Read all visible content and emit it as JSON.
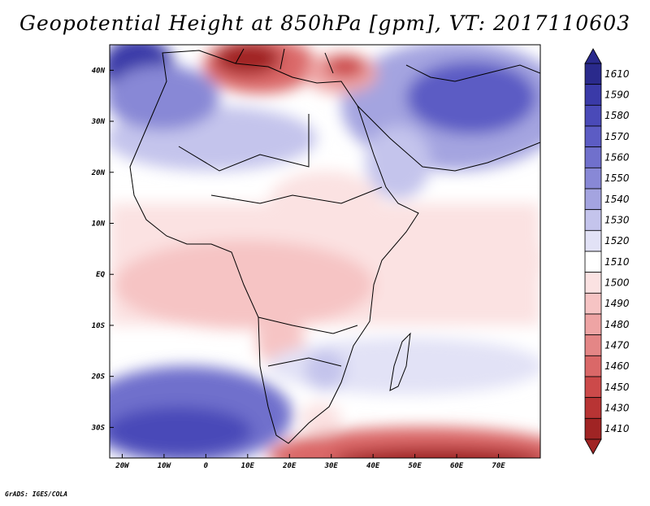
{
  "title": "Geopotential Height at 850hPa [gpm], VT: 2017110603",
  "credit": "GrADS: IGES/COLA",
  "map": {
    "variable": "Geopotential Height at 850hPa",
    "units": "gpm",
    "valid_time": "2017110603",
    "lon_range": [
      -23,
      80
    ],
    "lat_range": [
      -36,
      45
    ],
    "x_ticks": [
      "20W",
      "10W",
      "0",
      "10E",
      "20E",
      "30E",
      "40E",
      "50E",
      "60E",
      "70E"
    ],
    "y_ticks": [
      "40N",
      "30N",
      "20N",
      "10N",
      "EQ",
      "10S",
      "20S",
      "30S"
    ]
  },
  "colorbar": {
    "levels": [
      "1610",
      "1590",
      "1580",
      "1570",
      "1560",
      "1550",
      "1540",
      "1530",
      "1520",
      "1510",
      "1500",
      "1490",
      "1480",
      "1470",
      "1460",
      "1450",
      "1430",
      "1410"
    ],
    "colors": [
      "#2a2a8c",
      "#3a3aa8",
      "#4a4ab8",
      "#5c5cc4",
      "#7070cc",
      "#8888d6",
      "#a4a4e0",
      "#c4c4ec",
      "#e2e2f6",
      "#ffffff",
      "#fbe2e2",
      "#f6c4c4",
      "#eea4a4",
      "#e48686",
      "#da6868",
      "#cc4a4a",
      "#b83434",
      "#a02424"
    ]
  }
}
